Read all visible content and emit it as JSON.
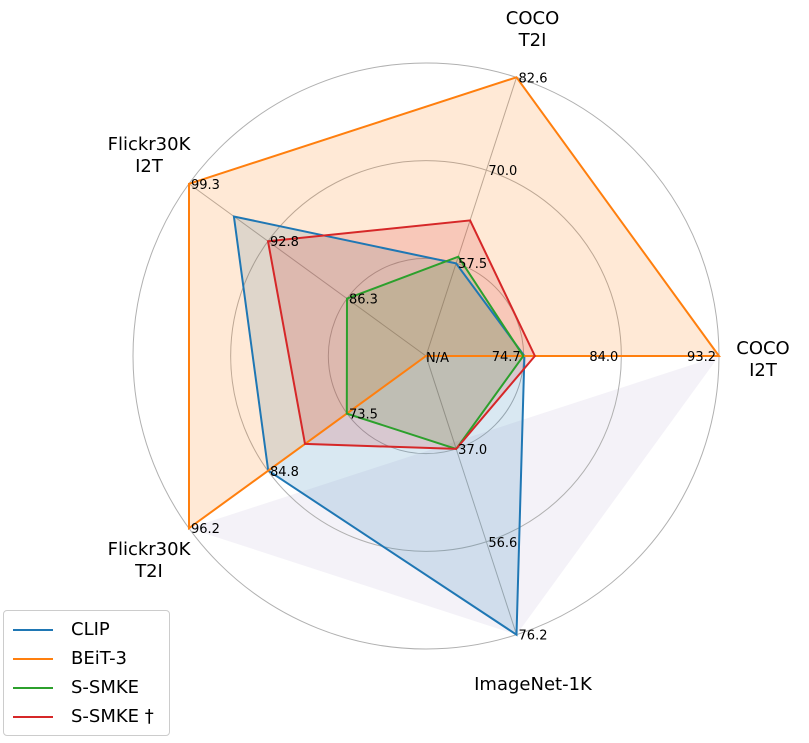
{
  "chart_data": {
    "type": "radar",
    "axes": [
      {
        "title_lines": [
          "COCO",
          "I2T"
        ],
        "tick_labels": [
          "74.7",
          "84.0",
          "93.2"
        ],
        "min": 65.5,
        "max": 93.2
      },
      {
        "title_lines": [
          "COCO",
          "T2I"
        ],
        "tick_labels": [
          "57.5",
          "70.0",
          "82.6"
        ],
        "min": 45.0,
        "max": 82.6
      },
      {
        "title_lines": [
          "Flickr30K",
          "I2T"
        ],
        "tick_labels": [
          "86.3",
          "92.8",
          "99.3"
        ],
        "min": 79.8,
        "max": 99.3
      },
      {
        "title_lines": [
          "Flickr30K",
          "T2I"
        ],
        "tick_labels": [
          "73.5",
          "84.8",
          "96.2"
        ],
        "min": 62.1,
        "max": 96.2
      },
      {
        "title_lines": [
          "ImageNet-1K"
        ],
        "tick_labels": [
          "37.0",
          "56.6",
          "76.2"
        ],
        "min": 17.4,
        "max": 76.2
      }
    ],
    "center_label": "N/A",
    "series": [
      {
        "name": "CLIP",
        "color": "#1f77b4",
        "values": [
          74.8,
          57.5,
          95.6,
          84.8,
          76.2
        ]
      },
      {
        "name": "BEiT-3",
        "color": "#ff7f0e",
        "values": [
          93.2,
          82.6,
          99.3,
          96.2,
          null
        ]
      },
      {
        "name": "S-SMKE",
        "color": "#2ca02c",
        "values": [
          74.7,
          58.4,
          86.3,
          73.5,
          37.0
        ]
      },
      {
        "name": "S-SMKE †",
        "color": "#d62728",
        "values": [
          75.8,
          63.3,
          92.8,
          79.5,
          37.0
        ]
      }
    ],
    "legend_position": "lower-left",
    "grid": true
  }
}
